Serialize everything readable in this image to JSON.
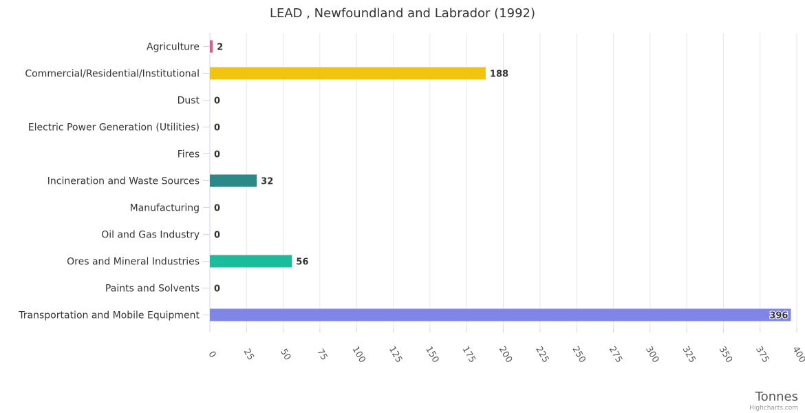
{
  "chart_data": {
    "type": "bar",
    "orientation": "horizontal",
    "title": "LEAD , Newfoundland and Labrador (1992)",
    "xlabel": "Tonnes",
    "ylabel": "",
    "xlim": [
      0,
      400
    ],
    "ticks": [
      "0",
      "25",
      "50",
      "75",
      "100",
      "125",
      "150",
      "175",
      "200",
      "225",
      "250",
      "275",
      "300",
      "325",
      "350",
      "375",
      "400"
    ],
    "tick_values": [
      0,
      25,
      50,
      75,
      100,
      125,
      150,
      175,
      200,
      225,
      250,
      275,
      300,
      325,
      350,
      375,
      400
    ],
    "grid": true,
    "categories": [
      "Agriculture",
      "Commercial/Residential/Institutional",
      "Dust",
      "Electric Power Generation (Utilities)",
      "Fires",
      "Incineration and Waste Sources",
      "Manufacturing",
      "Oil and Gas Industry",
      "Ores and Mineral Industries",
      "Paints and Solvents",
      "Transportation and Mobile Equipment"
    ],
    "values": [
      2,
      188,
      0,
      0,
      0,
      32,
      0,
      0,
      56,
      0,
      396
    ],
    "value_labels": [
      "2",
      "188",
      "0",
      "0",
      "0",
      "32",
      "0",
      "0",
      "56",
      "0",
      "396"
    ],
    "colors": [
      "#d4618c",
      "#f1c40f",
      "#cccccc",
      "#cccccc",
      "#cccccc",
      "#2b8a87",
      "#cccccc",
      "#cccccc",
      "#1abc9c",
      "#cccccc",
      "#7f86e8"
    ],
    "credit": "Highcharts.com"
  }
}
